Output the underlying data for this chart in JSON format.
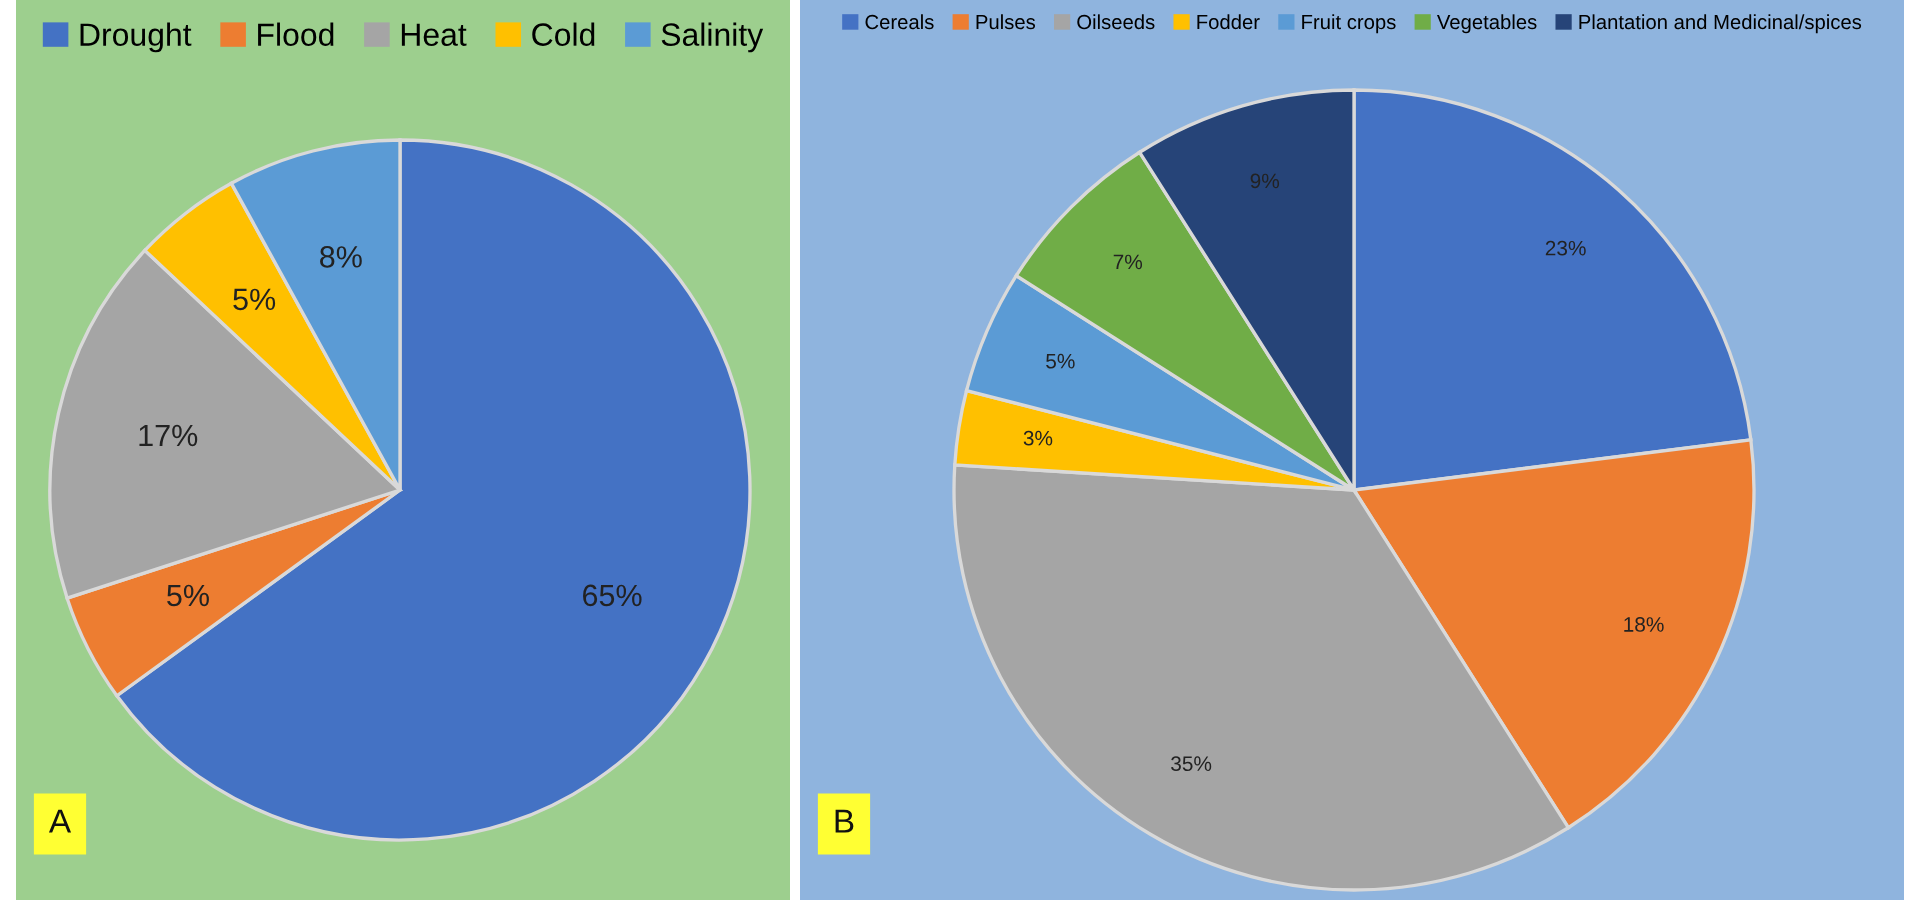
{
  "chart_data": [
    {
      "type": "pie",
      "categories": [
        "Drought",
        "Flood",
        "Heat",
        "Cold",
        "Salinity"
      ],
      "values": [
        65,
        5,
        17,
        5,
        8
      ],
      "colors": [
        "#4472c4",
        "#ed7d31",
        "#a5a5a5",
        "#ffc000",
        "#5b9bd5"
      ],
      "value_labels": [
        "65%",
        "5%",
        "17%",
        "5%",
        "8%"
      ],
      "legend": "top",
      "annotations": [
        "A"
      ]
    },
    {
      "type": "pie",
      "categories": [
        "Cereals",
        "Pulses",
        "Oilseeds",
        "Fodder",
        "Fruit crops",
        "Vegetables",
        "Plantation and Medicinal/spices"
      ],
      "values": [
        23,
        18,
        35,
        3,
        5,
        7,
        9
      ],
      "colors": [
        "#4472c4",
        "#ed7d31",
        "#a5a5a5",
        "#ffc000",
        "#5b9bd5",
        "#70ad47",
        "#264478"
      ],
      "value_labels": [
        "23%",
        "18%",
        "35%",
        "3%",
        "5%",
        "7%",
        "9%"
      ],
      "legend": "top",
      "annotations": [
        "B"
      ]
    }
  ]
}
